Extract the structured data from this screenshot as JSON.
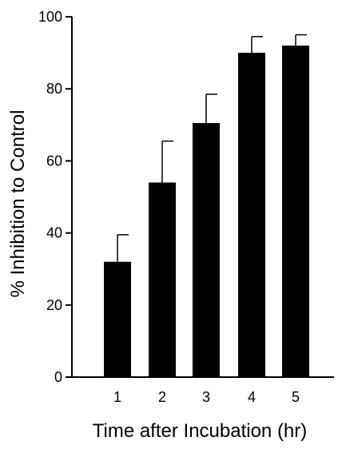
{
  "chart_data": {
    "type": "bar",
    "title": "",
    "xlabel": "Time after Incubation (hr)",
    "ylabel": "% Inhibition to Control",
    "categories": [
      "1",
      "2",
      "3",
      "4",
      "5"
    ],
    "values": [
      32,
      54,
      70.5,
      90,
      92
    ],
    "errors": [
      7.5,
      11.5,
      8,
      4.5,
      3
    ],
    "ylim": [
      0,
      100
    ],
    "yticks": [
      "0",
      "20",
      "40",
      "60",
      "80",
      "100"
    ],
    "grid": false,
    "legend": "none",
    "bar_color": "#000000"
  }
}
